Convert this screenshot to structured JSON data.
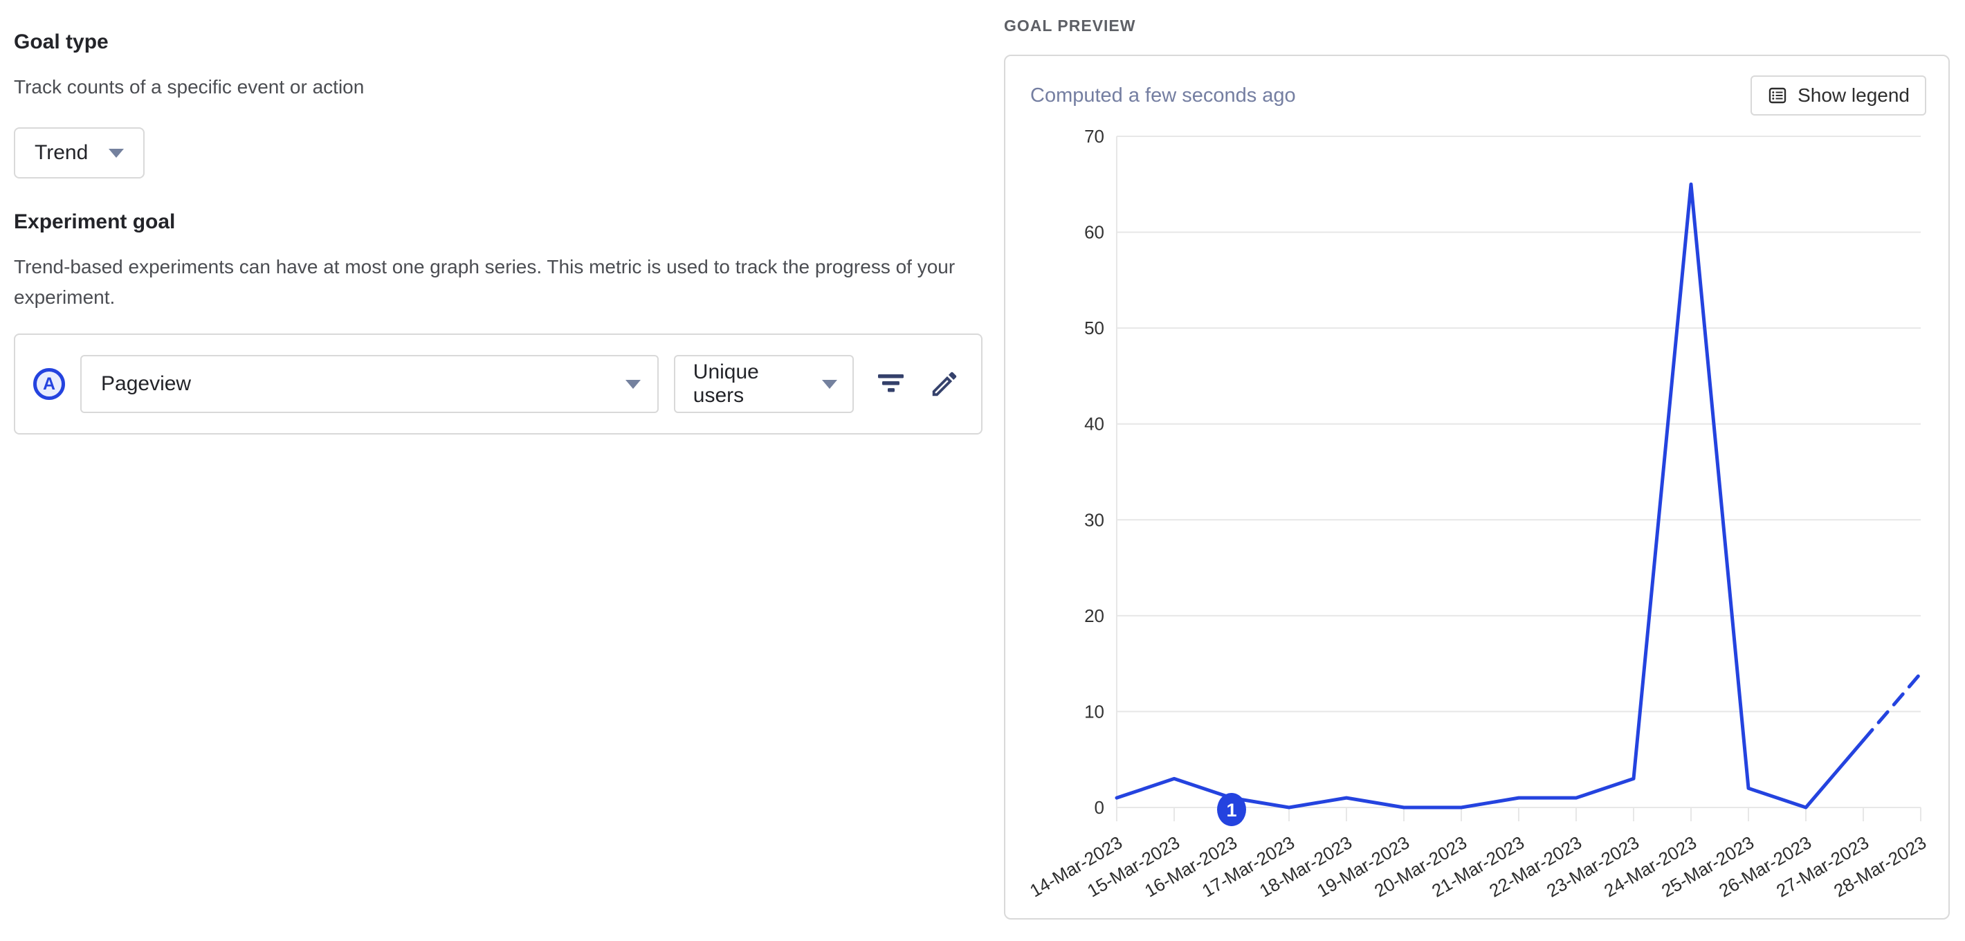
{
  "colors": {
    "accent_blue": "#2443df",
    "icon_navy": "#35416b",
    "border": "#d9d9d9",
    "muted_alt": "#747ea1",
    "grid": "#e7e7e7",
    "axis_text": "#333333",
    "heading_text": "#232429",
    "desc_text": "#4b4d52"
  },
  "icons": {
    "trend_caret": "chevron-down-icon",
    "event_caret": "chevron-down-icon",
    "aggregation_caret": "chevron-down-icon",
    "filter": "filter-icon",
    "edit": "pencil-icon",
    "legend": "legend-icon"
  },
  "left_panel": {
    "goal_type": {
      "title": "Goal type",
      "description": "Track counts of a specific event or action",
      "selected": "Trend"
    },
    "experiment_goal": {
      "title": "Experiment goal",
      "description": "Trend-based experiments can have at most one graph series. This metric is used to track the progress of your experiment."
    },
    "metric_row": {
      "series_label": "A",
      "event": "Pageview",
      "aggregation": "Unique users"
    }
  },
  "right_panel": {
    "section_label": "GOAL PREVIEW",
    "computed_status": "Computed a few seconds ago",
    "show_legend_label": "Show legend"
  },
  "chart_data": {
    "type": "line",
    "categories": [
      "14-Mar-2023",
      "15-Mar-2023",
      "16-Mar-2023",
      "17-Mar-2023",
      "18-Mar-2023",
      "19-Mar-2023",
      "20-Mar-2023",
      "21-Mar-2023",
      "22-Mar-2023",
      "23-Mar-2023",
      "24-Mar-2023",
      "25-Mar-2023",
      "26-Mar-2023",
      "27-Mar-2023",
      "28-Mar-2023"
    ],
    "values": [
      1,
      3,
      1,
      0,
      1,
      0,
      0,
      1,
      1,
      3,
      65,
      2,
      0,
      7,
      14
    ],
    "ylim": [
      0,
      70
    ],
    "ytick_step": 10,
    "grid": true,
    "line_color": "#2443df",
    "dashed_from_index": 13,
    "annotations": [
      {
        "index": 2,
        "label": "1"
      }
    ]
  }
}
